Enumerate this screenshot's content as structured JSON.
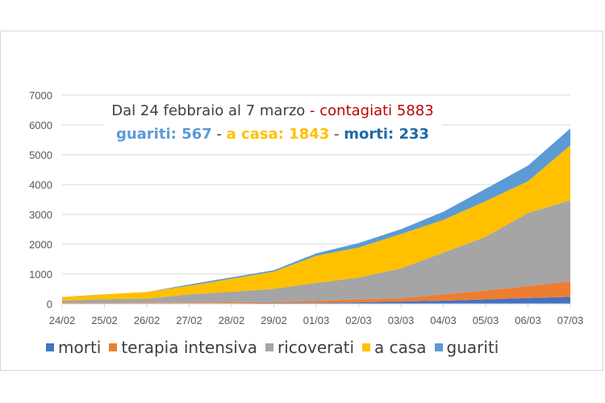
{
  "chart_data": {
    "type": "area",
    "stacked": true,
    "categories": [
      "24/02",
      "25/02",
      "26/02",
      "27/02",
      "28/02",
      "29/02",
      "01/03",
      "02/03",
      "03/03",
      "04/03",
      "05/03",
      "06/03",
      "07/03"
    ],
    "series": [
      {
        "name": "morti",
        "color": "#4472C4",
        "values": [
          7,
          10,
          12,
          17,
          21,
          29,
          34,
          52,
          79,
          107,
          148,
          197,
          233
        ]
      },
      {
        "name": "terapia intensiva",
        "color": "#ED7D31",
        "values": [
          19,
          17,
          23,
          19,
          36,
          35,
          70,
          100,
          110,
          210,
          300,
          400,
          520
        ]
      },
      {
        "name": "ricoverati",
        "color": "#A5A5A5",
        "values": [
          80,
          130,
          140,
          280,
          350,
          440,
          600,
          730,
          1000,
          1400,
          1800,
          2450,
          2720
        ]
      },
      {
        "name": "a casa",
        "color": "#FFC000",
        "values": [
          122,
          164,
          222,
          289,
          435,
          578,
          907,
          1005,
          1153,
          1096,
          1196,
          1066,
          1843
        ]
      },
      {
        "name": "guariti",
        "color": "#5B9BD5",
        "values": [
          1,
          1,
          3,
          45,
          46,
          46,
          83,
          149,
          160,
          276,
          414,
          523,
          567
        ]
      }
    ],
    "ylim": [
      0,
      7000
    ],
    "yticks": [
      "0",
      "1000",
      "2000",
      "3000",
      "4000",
      "5000",
      "6000",
      "7000"
    ],
    "grid": true,
    "legend_position": "bottom",
    "title": {
      "line1_prefix": "Dal 24 febbraio al 7 marzo",
      "line1_suffix": " - contagiati 5883",
      "line2_guariti": "guariti: 567",
      "line2_sep1": " - ",
      "line2_acasa": "a casa: 1843",
      "line2_sep2": " - ",
      "line2_morti": "morti: 233"
    },
    "title_colors": {
      "main": "#404040",
      "contagiati": "#C00000",
      "guariti": "#5B9BD5",
      "a_casa": "#FFC000",
      "morti": "#1F6AA5",
      "separator": "#404040"
    }
  }
}
